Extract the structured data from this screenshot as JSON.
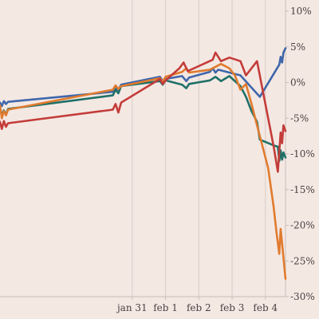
{
  "chart_data": {
    "type": "line",
    "title": "",
    "xlabel": "",
    "ylabel": "",
    "y_unit": "%",
    "ylim": [
      -30,
      10
    ],
    "y_ticks": [
      10,
      5,
      0,
      -5,
      -10,
      -15,
      -20,
      -25,
      -30
    ],
    "y_tick_labels": [
      "10%",
      "5%",
      "0%",
      "-5%",
      "-10%",
      "-15%",
      "-20%",
      "-25%",
      "-30%"
    ],
    "x_axis": "date",
    "xlim": [
      "2022-01-27 00:40",
      "2022-02-04 14:30"
    ],
    "x_ticks": [
      "2022-01-31 00:00",
      "2022-02-01 00:00",
      "2022-02-02 00:00",
      "2022-02-03 00:00",
      "2022-02-04 00:00"
    ],
    "x_tick_labels": [
      "jan 31",
      "feb 1",
      "feb 2",
      "feb 3",
      "feb 4"
    ],
    "grid": "vertical",
    "legend": "none",
    "series": [
      {
        "color": "#3f67ab",
        "points": [
          [
            "2022-01-27 00:40",
            -2.8
          ],
          [
            "2022-01-27 02:00",
            -3.3
          ],
          [
            "2022-01-27 03:30",
            -2.6
          ],
          [
            "2022-01-27 05:00",
            -3.0
          ],
          [
            "2022-01-27 06:30",
            -2.7
          ],
          [
            "2022-01-30 10:00",
            -1.3
          ],
          [
            "2022-01-30 12:00",
            -0.7
          ],
          [
            "2022-01-30 14:00",
            -1.0
          ],
          [
            "2022-01-30 16:00",
            -0.3
          ],
          [
            "2022-01-31 20:00",
            0.8
          ],
          [
            "2022-01-31 22:00",
            0.2
          ],
          [
            "2022-02-01 00:00",
            0.5
          ],
          [
            "2022-02-01 12:00",
            0.9
          ],
          [
            "2022-02-01 15:00",
            0.2
          ],
          [
            "2022-02-01 17:00",
            0.7
          ],
          [
            "2022-02-02 08:00",
            1.5
          ],
          [
            "2022-02-02 10:00",
            2.0
          ],
          [
            "2022-02-02 12:00",
            1.4
          ],
          [
            "2022-02-02 14:00",
            1.8
          ],
          [
            "2022-02-03 02:00",
            1.2
          ],
          [
            "2022-02-03 06:00",
            1.0
          ],
          [
            "2022-02-03 20:00",
            -2.0
          ],
          [
            "2022-02-04 10:00",
            2.5
          ],
          [
            "2022-02-04 11:00",
            3.6
          ],
          [
            "2022-02-04 12:00",
            2.8
          ],
          [
            "2022-02-04 13:00",
            4.2
          ],
          [
            "2022-02-04 14:30",
            4.8
          ]
        ]
      },
      {
        "color": "#1f7068",
        "points": [
          [
            "2022-01-27 00:40",
            -3.5
          ],
          [
            "2022-01-27 02:00",
            -4.6
          ],
          [
            "2022-01-27 03:30",
            -3.9
          ],
          [
            "2022-01-27 05:00",
            -4.5
          ],
          [
            "2022-01-27 06:30",
            -3.7
          ],
          [
            "2022-01-30 10:00",
            -1.8
          ],
          [
            "2022-01-30 12:00",
            -1.0
          ],
          [
            "2022-01-30 14:00",
            -1.5
          ],
          [
            "2022-01-30 16:00",
            -0.5
          ],
          [
            "2022-01-31 20:00",
            0.2
          ],
          [
            "2022-01-31 22:00",
            -0.3
          ],
          [
            "2022-02-01 00:00",
            0.3
          ],
          [
            "2022-02-01 12:00",
            -0.3
          ],
          [
            "2022-02-01 15:00",
            -0.8
          ],
          [
            "2022-02-01 17:00",
            -0.2
          ],
          [
            "2022-02-02 08:00",
            0.3
          ],
          [
            "2022-02-02 12:00",
            0.8
          ],
          [
            "2022-02-02 16:00",
            0.2
          ],
          [
            "2022-02-02 22:00",
            0.9
          ],
          [
            "2022-02-03 06:00",
            -0.5
          ],
          [
            "2022-02-03 10:00",
            -2.0
          ],
          [
            "2022-02-03 14:00",
            -4.0
          ],
          [
            "2022-02-03 18:00",
            -5.5
          ],
          [
            "2022-02-03 20:00",
            -8.0
          ],
          [
            "2022-02-04 06:00",
            -8.8
          ],
          [
            "2022-02-04 09:00",
            -9.0
          ],
          [
            "2022-02-04 10:00",
            -11.0
          ],
          [
            "2022-02-04 11:00",
            -9.5
          ],
          [
            "2022-02-04 12:00",
            -10.8
          ],
          [
            "2022-02-04 13:00",
            -9.8
          ],
          [
            "2022-02-04 14:30",
            -10.5
          ]
        ]
      },
      {
        "color": "#e07b2e",
        "points": [
          [
            "2022-01-27 00:40",
            -3.2
          ],
          [
            "2022-01-27 02:00",
            -5.0
          ],
          [
            "2022-01-27 03:30",
            -4.0
          ],
          [
            "2022-01-27 05:00",
            -4.6
          ],
          [
            "2022-01-27 06:30",
            -3.8
          ],
          [
            "2022-01-30 10:00",
            -1.0
          ],
          [
            "2022-01-30 12:00",
            -0.4
          ],
          [
            "2022-01-30 14:00",
            -0.9
          ],
          [
            "2022-01-30 16:00",
            -0.5
          ],
          [
            "2022-01-31 20:00",
            0.6
          ],
          [
            "2022-01-31 22:00",
            0.1
          ],
          [
            "2022-02-01 00:00",
            0.8
          ],
          [
            "2022-02-01 12:00",
            1.5
          ],
          [
            "2022-02-01 15:00",
            2.0
          ],
          [
            "2022-02-01 17:00",
            1.4
          ],
          [
            "2022-02-02 08:00",
            1.8
          ],
          [
            "2022-02-02 12:00",
            2.2
          ],
          [
            "2022-02-02 16:00",
            2.6
          ],
          [
            "2022-02-02 22:00",
            2.0
          ],
          [
            "2022-02-03 02:00",
            1.0
          ],
          [
            "2022-02-03 06:00",
            -1.0
          ],
          [
            "2022-02-03 10:00",
            -0.2
          ],
          [
            "2022-02-03 14:00",
            -3.0
          ],
          [
            "2022-02-03 18:00",
            -6.0
          ],
          [
            "2022-02-04 02:00",
            -12.0
          ],
          [
            "2022-02-04 06:00",
            -17.5
          ],
          [
            "2022-02-04 08:00",
            -21.0
          ],
          [
            "2022-02-04 10:00",
            -24.0
          ],
          [
            "2022-02-04 11:00",
            -20.5
          ],
          [
            "2022-02-04 12:00",
            -22.5
          ],
          [
            "2022-02-04 13:00",
            -24.5
          ],
          [
            "2022-02-04 14:30",
            -27.5
          ]
        ]
      },
      {
        "color": "#c43c39",
        "points": [
          [
            "2022-01-27 00:40",
            -5.5
          ],
          [
            "2022-01-27 02:00",
            -6.5
          ],
          [
            "2022-01-27 03:30",
            -5.4
          ],
          [
            "2022-01-27 05:00",
            -6.2
          ],
          [
            "2022-01-27 06:30",
            -5.7
          ],
          [
            "2022-01-30 10:00",
            -3.8
          ],
          [
            "2022-01-30 12:00",
            -3.0
          ],
          [
            "2022-01-30 14:00",
            -4.2
          ],
          [
            "2022-01-30 16:00",
            -2.8
          ],
          [
            "2022-01-31 20:00",
            0.5
          ],
          [
            "2022-01-31 22:00",
            -0.2
          ],
          [
            "2022-02-01 00:00",
            0.3
          ],
          [
            "2022-02-01 10:00",
            2.0
          ],
          [
            "2022-02-01 13:00",
            2.8
          ],
          [
            "2022-02-01 16:00",
            1.6
          ],
          [
            "2022-02-02 10:00",
            3.2
          ],
          [
            "2022-02-02 12:00",
            4.2
          ],
          [
            "2022-02-02 16:00",
            3.0
          ],
          [
            "2022-02-02 22:00",
            3.5
          ],
          [
            "2022-02-03 06:00",
            3.0
          ],
          [
            "2022-02-03 10:00",
            1.0
          ],
          [
            "2022-02-03 14:00",
            2.0
          ],
          [
            "2022-02-03 18:00",
            3.0
          ],
          [
            "2022-02-04 06:00",
            -9.0
          ],
          [
            "2022-02-04 09:00",
            -12.5
          ],
          [
            "2022-02-04 11:00",
            -7.0
          ],
          [
            "2022-02-04 12:00",
            -8.5
          ],
          [
            "2022-02-04 13:00",
            -6.0
          ],
          [
            "2022-02-04 14:30",
            -6.8
          ]
        ]
      }
    ]
  }
}
